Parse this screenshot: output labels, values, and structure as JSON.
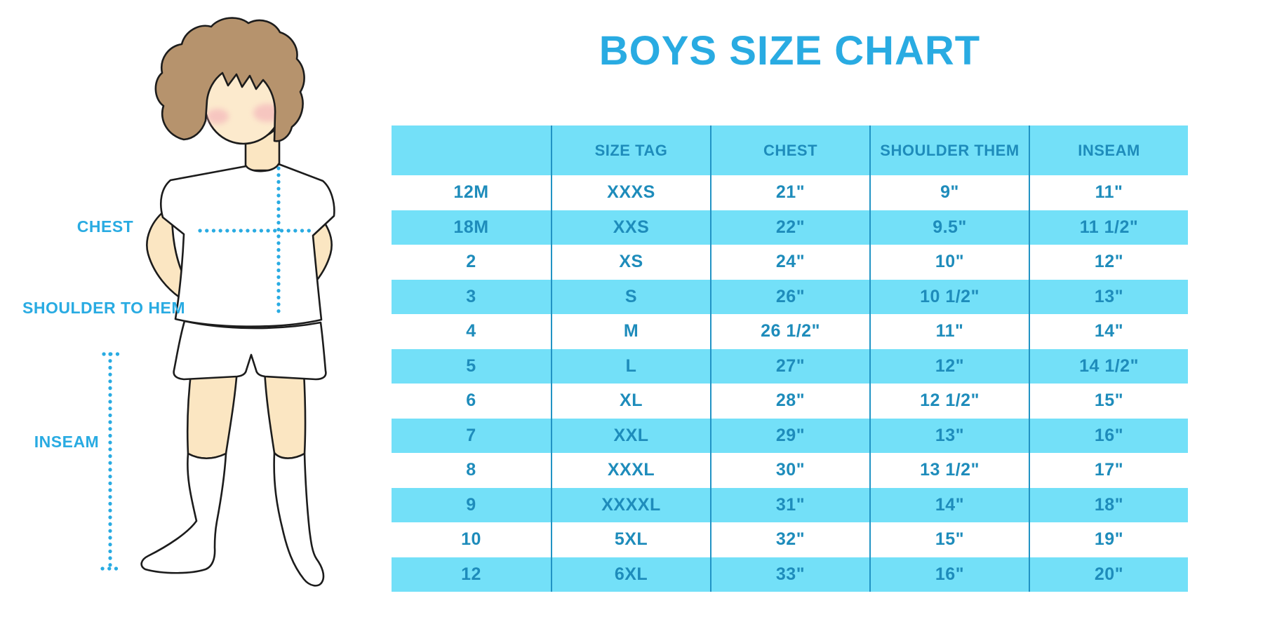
{
  "title": "BOYS SIZE CHART",
  "colors": {
    "accent_blue": "#29ABE2",
    "table_text_blue": "#1E8CBB",
    "band_cyan": "#73E0F8",
    "divider_blue": "#2193C4",
    "skin": "#FBE6C2",
    "face_skin": "#FCEACD",
    "hair_brown": "#B6936D",
    "blush_pink": "#F2A9B6",
    "outline": "#1C1C1C"
  },
  "diagram": {
    "labels": {
      "chest": "CHEST",
      "shoulder_to_hem": "SHOULDER TO HEM",
      "inseam": "INSEAM"
    }
  },
  "chart_data": {
    "type": "table",
    "title": "BOYS SIZE CHART",
    "columns": [
      "",
      "SIZE TAG",
      "CHEST",
      "SHOULDER THEM",
      "INSEAM"
    ],
    "rows": [
      [
        "12M",
        "XXXS",
        "21\"",
        "9\"",
        "11\""
      ],
      [
        "18M",
        "XXS",
        "22\"",
        "9.5\"",
        "11 1/2\""
      ],
      [
        "2",
        "XS",
        "24\"",
        "10\"",
        "12\""
      ],
      [
        "3",
        "S",
        "26\"",
        "10 1/2\"",
        "13\""
      ],
      [
        "4",
        "M",
        "26 1/2\"",
        "11\"",
        "14\""
      ],
      [
        "5",
        "L",
        "27\"",
        "12\"",
        "14 1/2\""
      ],
      [
        "6",
        "XL",
        "28\"",
        "12 1/2\"",
        "15\""
      ],
      [
        "7",
        "XXL",
        "29\"",
        "13\"",
        "16\""
      ],
      [
        "8",
        "XXXL",
        "30\"",
        "13 1/2\"",
        "17\""
      ],
      [
        "9",
        "XXXXL",
        "31\"",
        "14\"",
        "18\""
      ],
      [
        "10",
        "5XL",
        "32\"",
        "15\"",
        "19\""
      ],
      [
        "12",
        "6XL",
        "33\"",
        "16\"",
        "20\""
      ]
    ],
    "layout": {
      "row_striping": "alternating white / cyan, header cyan",
      "grid": "vertical dividers only"
    }
  }
}
